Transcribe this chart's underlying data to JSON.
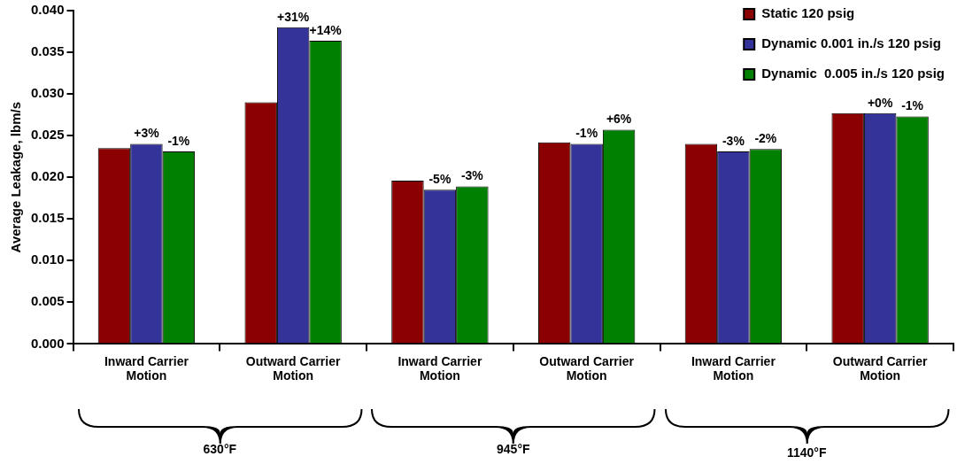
{
  "chart_data": {
    "type": "bar",
    "ylabel": "Average Leakage, lbm/s",
    "categories": [
      "Inward Carrier Motion",
      "Outward Carrier Motion",
      "Inward Carrier Motion",
      "Outward Carrier Motion",
      "Inward Carrier Motion",
      "Outward Carrier Motion"
    ],
    "series": [
      {
        "name": "Static 120 psig",
        "color": "#8b0000",
        "values": [
          0.0235,
          0.029,
          0.0196,
          0.0242,
          0.024,
          0.0277
        ]
      },
      {
        "name": "Dynamic 0.001 in./s 120 psig",
        "color": "#333399",
        "values": [
          0.024,
          0.038,
          0.0185,
          0.024,
          0.0231,
          0.0277
        ]
      },
      {
        "name": "Dynamic  0.005 in./s 120 psig",
        "color": "#008000",
        "values": [
          0.0231,
          0.0364,
          0.0189,
          0.0257,
          0.0234,
          0.0273
        ]
      }
    ],
    "ylim": [
      0,
      0.04
    ],
    "yticks": [
      {
        "value": 0,
        "label": "0.000"
      },
      {
        "value": 0.005,
        "label": "0.005"
      },
      {
        "value": 0.01,
        "label": "0.010"
      },
      {
        "value": 0.015,
        "label": "0.015"
      },
      {
        "value": 0.02,
        "label": "0.020"
      },
      {
        "value": 0.025,
        "label": "0.025"
      },
      {
        "value": 0.03,
        "label": "0.030"
      },
      {
        "value": 0.035,
        "label": "0.035"
      },
      {
        "value": 0.04,
        "label": "0.040"
      }
    ],
    "annotations": [
      "630°F",
      "945°F",
      "1140°F",
      "+3%",
      "-1%",
      "+31%",
      "+14%",
      "-5%",
      "-3%",
      "-1%",
      "+6%",
      "-3%",
      "-2%",
      "+0%",
      "-1%"
    ],
    "grid": false,
    "legend": "top right"
  }
}
